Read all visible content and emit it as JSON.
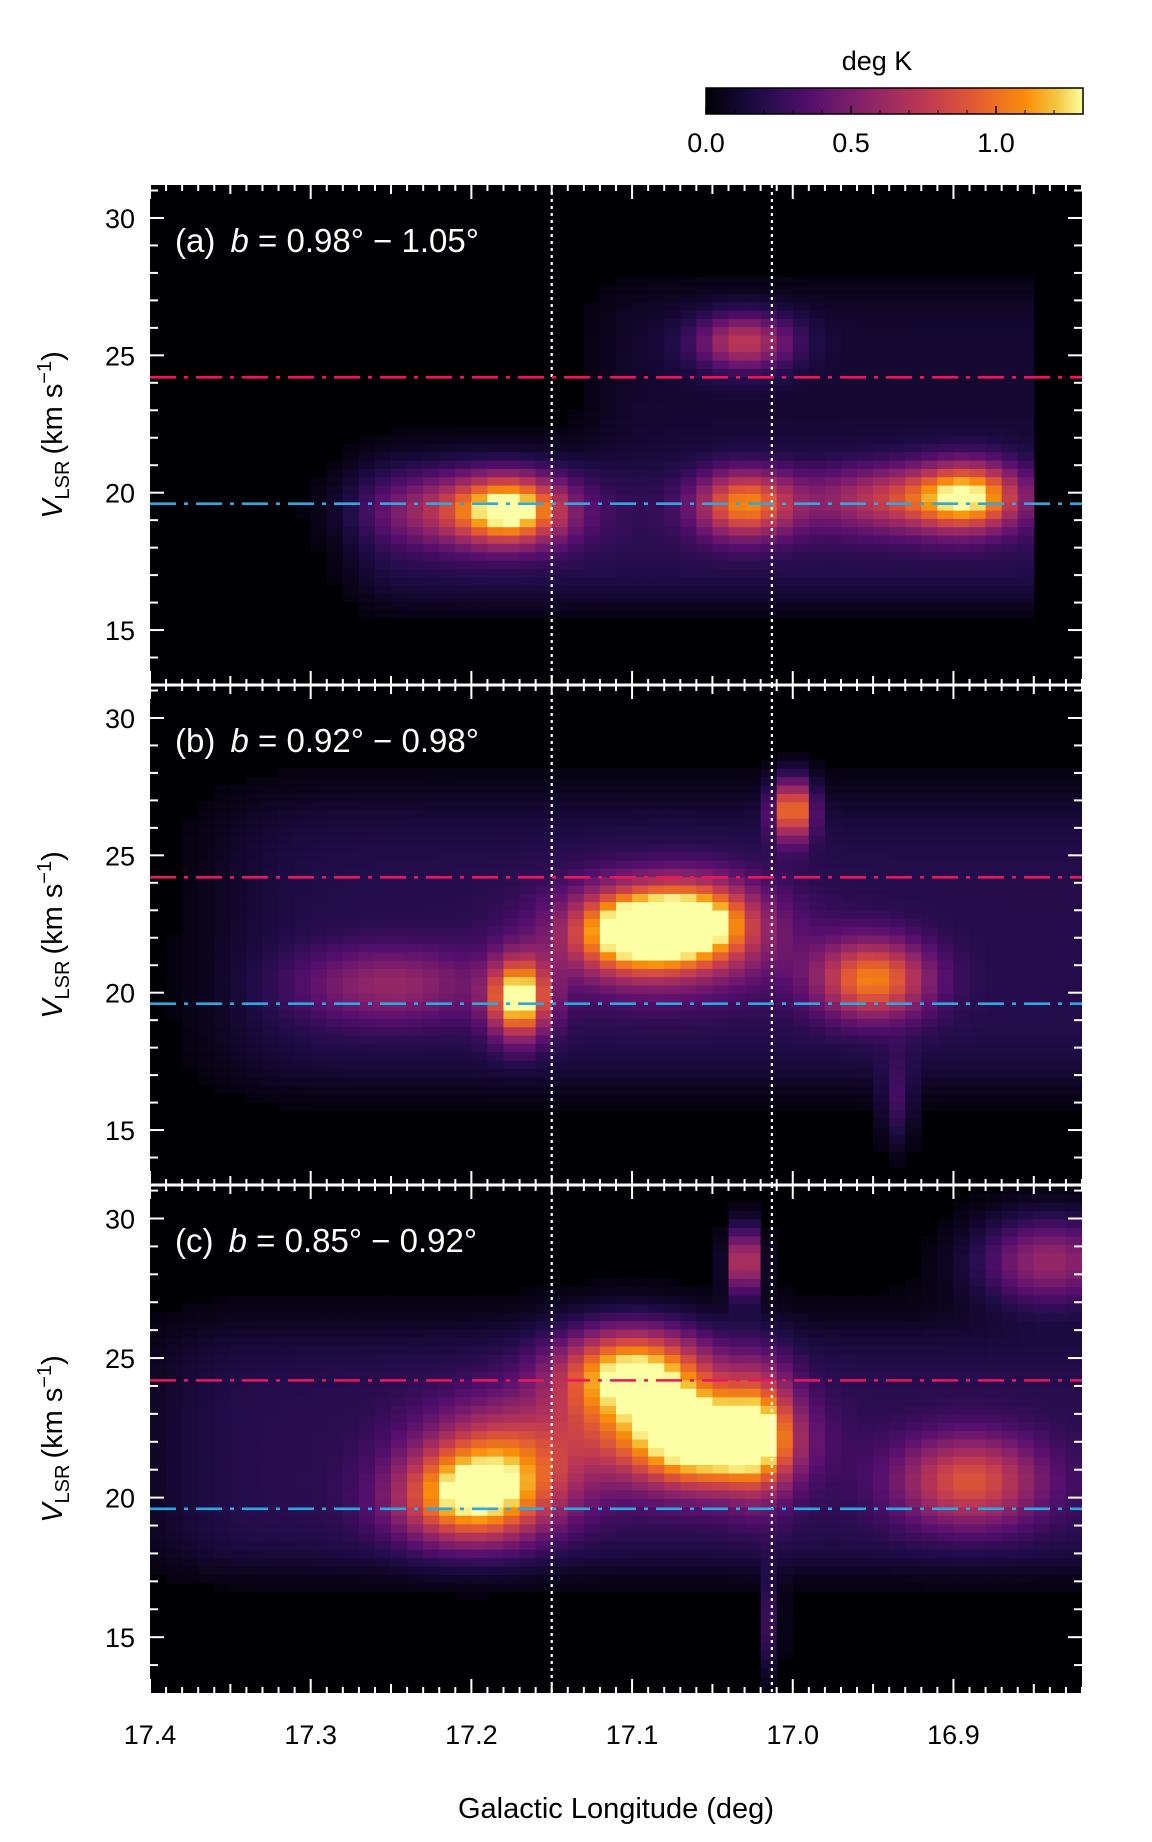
{
  "chart_data": {
    "type": "heatmap",
    "colorbar": {
      "label": "deg K",
      "colormap": "inferno",
      "range": [
        0.0,
        1.3
      ],
      "ticks": [
        0.0,
        0.5,
        1.0
      ],
      "tick_labels": [
        "0.0",
        "0.5",
        "1.0"
      ]
    },
    "xlabel": "Galactic Longitude (deg)",
    "xlim": [
      17.4,
      16.82
    ],
    "xticks": [
      17.4,
      17.3,
      17.2,
      17.1,
      17.0,
      16.9
    ],
    "xtick_labels": [
      "17.4",
      "17.3",
      "17.2",
      "17.1",
      "17.0",
      "16.9"
    ],
    "ylabel_main": "V",
    "ylabel_sub": "LSR",
    "ylabel_units": "(km s",
    "ylabel_exp": "−1",
    "ylabel_close": ")",
    "ylim": [
      13.0,
      31.2
    ],
    "yticks": [
      15,
      20,
      25,
      30
    ],
    "ytick_labels": [
      "15",
      "20",
      "25",
      "30"
    ],
    "vertical_lines": [
      {
        "x": 17.15,
        "style": "dotted",
        "color": "#ffffff"
      },
      {
        "x": 17.013,
        "style": "dotted",
        "color": "#ffffff"
      }
    ],
    "horizontal_lines": [
      {
        "y": 24.2,
        "style": "dash-dot",
        "color": "#e8185a"
      },
      {
        "y": 19.6,
        "style": "dash-dot",
        "color": "#2ba9e0"
      }
    ],
    "panels": [
      {
        "tag": "(a)",
        "b_symbol": "b",
        "b_text": " = 0.98° − 1.05°",
        "data_x_range": [
          17.32,
          16.85
        ],
        "emission": [
          {
            "l": 17.175,
            "v": 19.4,
            "T": 0.95
          },
          {
            "l": 17.03,
            "v": 19.6,
            "T": 1.0
          },
          {
            "l": 16.89,
            "v": 19.9,
            "T": 0.95
          },
          {
            "l": 17.03,
            "v": 25.5,
            "T": 0.75
          }
        ]
      },
      {
        "tag": "(b)",
        "b_symbol": "b",
        "b_text": " = 0.92° − 0.98°",
        "data_x_range": [
          17.4,
          16.82
        ],
        "emission": [
          {
            "l": 17.17,
            "v": 19.8,
            "T": 1.3
          },
          {
            "l": 17.1,
            "v": 22.3,
            "T": 1.0
          },
          {
            "l": 17.06,
            "v": 22.6,
            "T": 0.95
          },
          {
            "l": 17.0,
            "v": 26.7,
            "T": 1.1
          },
          {
            "l": 16.95,
            "v": 20.5,
            "T": 0.95
          }
        ]
      },
      {
        "tag": "(c)",
        "b_symbol": "b",
        "b_text": " = 0.85° − 0.92°",
        "data_x_range": [
          17.4,
          16.82
        ],
        "emission": [
          {
            "l": 17.2,
            "v": 20.0,
            "T": 1.15
          },
          {
            "l": 17.1,
            "v": 24.5,
            "T": 1.25
          },
          {
            "l": 17.05,
            "v": 22.0,
            "T": 1.2
          },
          {
            "l": 17.03,
            "v": 28.5,
            "T": 1.0
          },
          {
            "l": 16.89,
            "v": 20.6,
            "T": 0.8
          },
          {
            "l": 16.84,
            "v": 28.5,
            "T": 0.7
          }
        ]
      }
    ]
  }
}
